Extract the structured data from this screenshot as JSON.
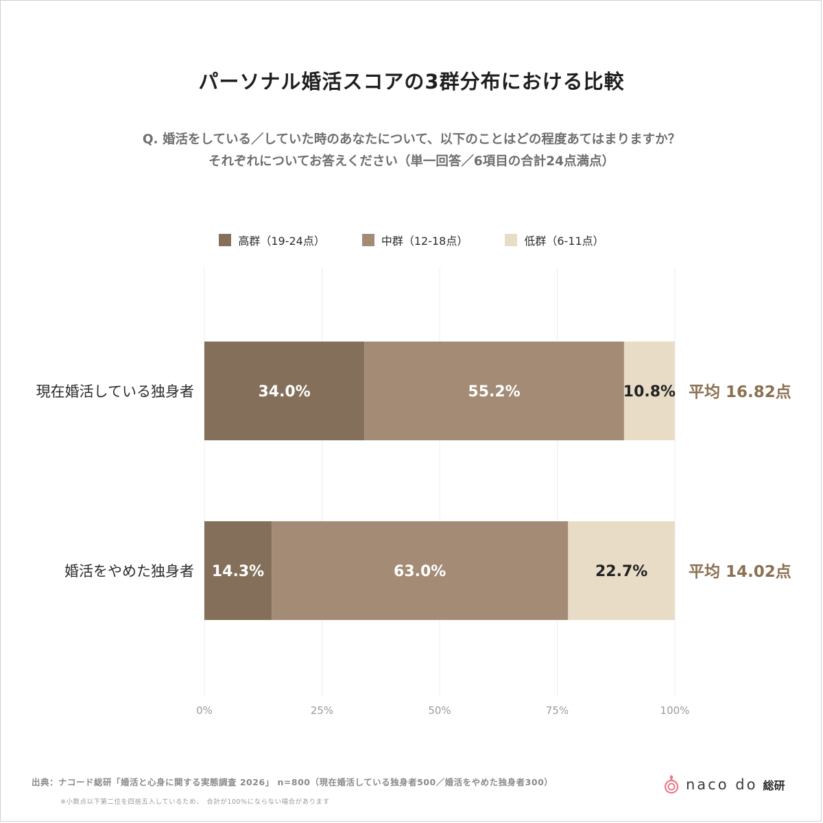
{
  "title": "パーソナル婚活スコアの3群分布における比較",
  "question": {
    "line1": "Q. 婚活をしている／していた時のあなたについて、以下のことはどの程度あてはまりますか？",
    "line2": "それぞれについてお答えください（単一回答／6項目の合計24点満点）"
  },
  "colors": {
    "high": "#84705a",
    "mid": "#a38b75",
    "low": "#e8dcc7",
    "avg_text": "#8b7052",
    "grid": "#ececec",
    "tick": "#9a9a9a"
  },
  "chart_data": {
    "type": "bar",
    "orientation": "horizontal",
    "stacked": true,
    "categories": [
      "現在婚活している独身者",
      "婚活をやめた独身者"
    ],
    "series": [
      {
        "name": "高群（19-24点）",
        "values": [
          34.0,
          14.3
        ],
        "labels": [
          "34.0%",
          "14.3%"
        ],
        "color": "#84705a",
        "label_color": "#ffffff"
      },
      {
        "name": "中群（12-18点）",
        "values": [
          55.2,
          63.0
        ],
        "labels": [
          "55.2%",
          "63.0%"
        ],
        "color": "#a38b75",
        "label_color": "#ffffff"
      },
      {
        "name": "低群（6-11点）",
        "values": [
          10.8,
          22.7
        ],
        "labels": [
          "10.8%",
          "22.7%"
        ],
        "color": "#e8dcc7",
        "label_color": "#222222"
      }
    ],
    "averages": [
      "平均 16.82点",
      "平均 14.02点"
    ],
    "xlim": [
      0,
      100
    ],
    "xticks": [
      0,
      25,
      50,
      75,
      100
    ],
    "xtick_labels": [
      "0%",
      "25%",
      "50%",
      "75%",
      "100%"
    ],
    "grid": true,
    "legend_position": "top-center"
  },
  "footer": {
    "source": "出典：ナコード総研「婚活と心身に関する実態調査 2026」 n=800（現在婚活している独身者500／婚活をやめた独身者300）",
    "note": "※小数点以下第二位を四捨五入しているため、　合計が100%にならない場合があります"
  },
  "logo": {
    "text": "naco do",
    "sub": "総研"
  }
}
